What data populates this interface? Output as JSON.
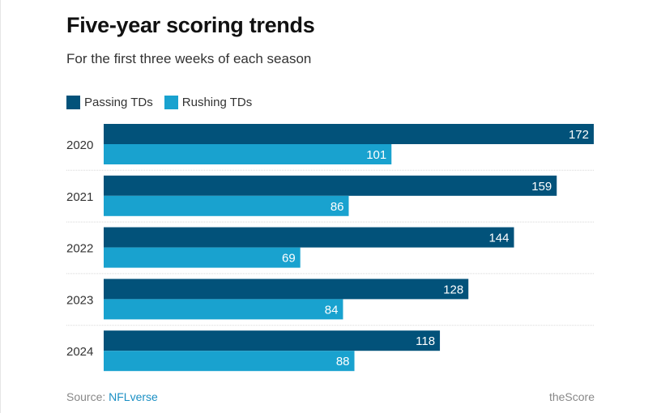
{
  "chart_data": {
    "type": "bar",
    "orientation": "horizontal",
    "title": "Five-year scoring trends",
    "subtitle": "For the first three weeks of each season",
    "categories": [
      "2020",
      "2021",
      "2022",
      "2023",
      "2024"
    ],
    "series": [
      {
        "name": "Passing TDs",
        "color": "#02527a",
        "values": [
          172,
          159,
          144,
          128,
          118
        ]
      },
      {
        "name": "Rushing TDs",
        "color": "#19a2cf",
        "values": [
          101,
          86,
          69,
          84,
          88
        ]
      }
    ],
    "xlim": [
      0,
      172
    ],
    "legend": "top-left",
    "grid": false
  },
  "footer": {
    "source_label": "Source: ",
    "source_link": "NFLverse",
    "brand": "theScore"
  }
}
